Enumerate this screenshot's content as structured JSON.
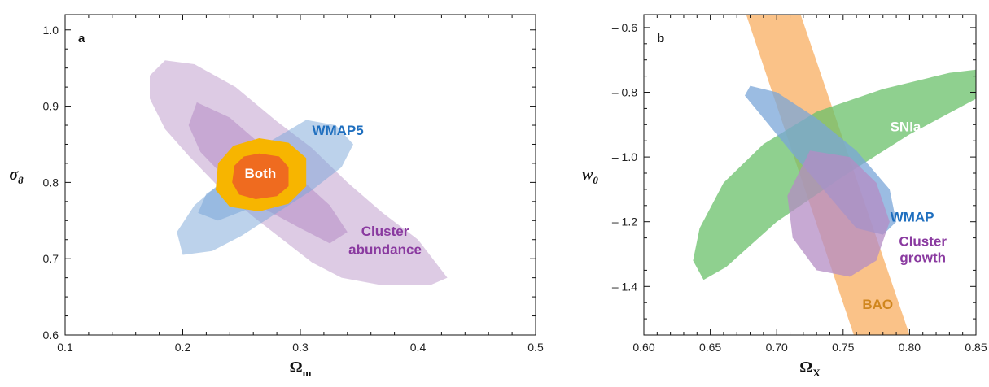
{
  "colors": {
    "wmap": "#7aa6d8",
    "cluster": "#b48cc4",
    "both_outer": "#f7b500",
    "both_inner": "#ef6b1f",
    "sn": "#69c06a",
    "bao": "#f9b36a",
    "text_blue": "#1f6fbf",
    "text_purple": "#8a3aa0",
    "text_orange": "#d0861e",
    "text_white": "#ffffff"
  },
  "chart_data": [
    {
      "type": "area",
      "panel_label": "a",
      "title": "",
      "xlabel": "Ω",
      "xlabel_sub": "m",
      "ylabel": "σ",
      "ylabel_sub": "8",
      "xlim": [
        0.1,
        0.5
      ],
      "ylim": [
        0.6,
        1.02
      ],
      "xticks": [
        "0.1",
        "0.2",
        "0.3",
        "0.4",
        "0.5"
      ],
      "xtick_values": [
        0.1,
        0.2,
        0.3,
        0.4,
        0.5
      ],
      "yticks": [
        "0.6",
        "0.7",
        "0.8",
        "0.9",
        "1.0"
      ],
      "ytick_values": [
        0.6,
        0.7,
        0.8,
        0.9,
        1.0
      ],
      "regions": [
        {
          "key": "cluster_outer",
          "color": "cluster",
          "opacity": 0.45,
          "points": [
            [
              0.185,
              0.96
            ],
            [
              0.21,
              0.955
            ],
            [
              0.245,
              0.925
            ],
            [
              0.28,
              0.88
            ],
            [
              0.31,
              0.845
            ],
            [
              0.34,
              0.8
            ],
            [
              0.37,
              0.76
            ],
            [
              0.4,
              0.725
            ],
            [
              0.425,
              0.675
            ],
            [
              0.41,
              0.665
            ],
            [
              0.37,
              0.665
            ],
            [
              0.335,
              0.675
            ],
            [
              0.31,
              0.695
            ],
            [
              0.285,
              0.725
            ],
            [
              0.26,
              0.755
            ],
            [
              0.23,
              0.795
            ],
            [
              0.205,
              0.835
            ],
            [
              0.185,
              0.87
            ],
            [
              0.172,
              0.91
            ],
            [
              0.172,
              0.94
            ]
          ]
        },
        {
          "key": "cluster_inner",
          "color": "cluster",
          "opacity": 0.55,
          "points": [
            [
              0.212,
              0.905
            ],
            [
              0.24,
              0.885
            ],
            [
              0.27,
              0.845
            ],
            [
              0.3,
              0.805
            ],
            [
              0.325,
              0.77
            ],
            [
              0.34,
              0.735
            ],
            [
              0.325,
              0.72
            ],
            [
              0.3,
              0.74
            ],
            [
              0.27,
              0.765
            ],
            [
              0.24,
              0.8
            ],
            [
              0.215,
              0.84
            ],
            [
              0.205,
              0.875
            ]
          ]
        },
        {
          "key": "wmap_outer",
          "color": "wmap",
          "opacity": 0.5,
          "points": [
            [
              0.305,
              0.882
            ],
            [
              0.33,
              0.875
            ],
            [
              0.345,
              0.85
            ],
            [
              0.335,
              0.82
            ],
            [
              0.31,
              0.79
            ],
            [
              0.28,
              0.76
            ],
            [
              0.25,
              0.73
            ],
            [
              0.225,
              0.71
            ],
            [
              0.2,
              0.705
            ],
            [
              0.195,
              0.735
            ],
            [
              0.21,
              0.77
            ],
            [
              0.24,
              0.81
            ],
            [
              0.27,
              0.85
            ]
          ]
        },
        {
          "key": "wmap_inner",
          "color": "wmap",
          "opacity": 0.55,
          "points": [
            [
              0.29,
              0.84
            ],
            [
              0.305,
              0.83
            ],
            [
              0.3,
              0.805
            ],
            [
              0.28,
              0.785
            ],
            [
              0.255,
              0.765
            ],
            [
              0.23,
              0.75
            ],
            [
              0.213,
              0.76
            ],
            [
              0.22,
              0.785
            ],
            [
              0.245,
              0.81
            ],
            [
              0.27,
              0.83
            ]
          ]
        },
        {
          "key": "both_outer",
          "color": "both_outer",
          "opacity": 1.0,
          "points": [
            [
              0.265,
              0.858
            ],
            [
              0.29,
              0.852
            ],
            [
              0.305,
              0.832
            ],
            [
              0.305,
              0.795
            ],
            [
              0.29,
              0.772
            ],
            [
              0.265,
              0.762
            ],
            [
              0.24,
              0.768
            ],
            [
              0.228,
              0.79
            ],
            [
              0.23,
              0.825
            ],
            [
              0.243,
              0.848
            ]
          ]
        },
        {
          "key": "both_inner",
          "color": "both_inner",
          "opacity": 1.0,
          "points": [
            [
              0.265,
              0.838
            ],
            [
              0.282,
              0.834
            ],
            [
              0.29,
              0.82
            ],
            [
              0.29,
              0.795
            ],
            [
              0.28,
              0.782
            ],
            [
              0.262,
              0.778
            ],
            [
              0.248,
              0.784
            ],
            [
              0.242,
              0.8
            ],
            [
              0.244,
              0.822
            ],
            [
              0.252,
              0.834
            ]
          ]
        }
      ],
      "labels": [
        {
          "key": "wmap5",
          "text": "WMAP5",
          "x": 0.31,
          "y": 0.862,
          "color": "text_blue",
          "anchor": "start"
        },
        {
          "key": "both",
          "text": "Both",
          "x": 0.266,
          "y": 0.806,
          "color": "text_white",
          "anchor": "middle"
        },
        {
          "key": "cluster1",
          "text": "Cluster",
          "x": 0.372,
          "y": 0.73,
          "color": "text_purple",
          "anchor": "middle"
        },
        {
          "key": "cluster2",
          "text": "abundance",
          "x": 0.372,
          "y": 0.706,
          "color": "text_purple",
          "anchor": "middle"
        }
      ]
    },
    {
      "type": "area",
      "panel_label": "b",
      "title": "",
      "xlabel": "Ω",
      "xlabel_sub": "X",
      "ylabel": "w",
      "ylabel_sub": "0",
      "xlim": [
        0.6,
        0.85
      ],
      "ylim": [
        -1.55,
        -0.56
      ],
      "xticks": [
        "0.60",
        "0.65",
        "0.70",
        "0.75",
        "0.80",
        "0.85"
      ],
      "xtick_values": [
        0.6,
        0.65,
        0.7,
        0.75,
        0.8,
        0.85
      ],
      "yticks": [
        "– 1.4",
        "– 1.2",
        "– 1.0",
        "– 0.8",
        "– 0.6"
      ],
      "ytick_values": [
        -1.4,
        -1.2,
        -1.0,
        -0.8,
        -0.6
      ],
      "regions": [
        {
          "key": "bao",
          "color": "bao",
          "opacity": 0.8,
          "points": [
            [
              0.677,
              -0.56
            ],
            [
              0.718,
              -0.56
            ],
            [
              0.8,
              -1.55
            ],
            [
              0.758,
              -1.55
            ]
          ]
        },
        {
          "key": "sn",
          "color": "sn",
          "opacity": 0.75,
          "points": [
            [
              0.645,
              -1.38
            ],
            [
              0.662,
              -1.34
            ],
            [
              0.7,
              -1.2
            ],
            [
              0.75,
              -1.06
            ],
            [
              0.8,
              -0.93
            ],
            [
              0.85,
              -0.82
            ],
            [
              0.85,
              -0.73
            ],
            [
              0.83,
              -0.74
            ],
            [
              0.78,
              -0.79
            ],
            [
              0.73,
              -0.86
            ],
            [
              0.69,
              -0.96
            ],
            [
              0.66,
              -1.08
            ],
            [
              0.642,
              -1.22
            ],
            [
              0.637,
              -1.32
            ]
          ]
        },
        {
          "key": "wmap",
          "color": "wmap",
          "opacity": 0.75,
          "points": [
            [
              0.68,
              -0.78
            ],
            [
              0.7,
              -0.8
            ],
            [
              0.73,
              -0.88
            ],
            [
              0.76,
              -0.98
            ],
            [
              0.785,
              -1.1
            ],
            [
              0.79,
              -1.2
            ],
            [
              0.78,
              -1.24
            ],
            [
              0.76,
              -1.22
            ],
            [
              0.735,
              -1.1
            ],
            [
              0.71,
              -0.98
            ],
            [
              0.69,
              -0.88
            ],
            [
              0.676,
              -0.81
            ]
          ]
        },
        {
          "key": "cluster",
          "color": "cluster",
          "opacity": 0.75,
          "points": [
            [
              0.725,
              -0.98
            ],
            [
              0.755,
              -1.0
            ],
            [
              0.775,
              -1.08
            ],
            [
              0.785,
              -1.2
            ],
            [
              0.775,
              -1.32
            ],
            [
              0.755,
              -1.37
            ],
            [
              0.73,
              -1.35
            ],
            [
              0.712,
              -1.25
            ],
            [
              0.708,
              -1.12
            ]
          ]
        }
      ],
      "labels": [
        {
          "key": "sn",
          "text": "SNIa",
          "x": 0.797,
          "y": -0.92,
          "color": "text_white",
          "anchor": "middle"
        },
        {
          "key": "wmap",
          "text": "WMAP",
          "x": 0.802,
          "y": -1.2,
          "color": "text_blue",
          "anchor": "middle"
        },
        {
          "key": "cluster1",
          "text": "Cluster",
          "x": 0.81,
          "y": -1.275,
          "color": "text_purple",
          "anchor": "middle"
        },
        {
          "key": "cluster2",
          "text": "growth",
          "x": 0.81,
          "y": -1.325,
          "color": "text_purple",
          "anchor": "middle"
        },
        {
          "key": "bao",
          "text": "BAO",
          "x": 0.776,
          "y": -1.47,
          "color": "text_orange",
          "anchor": "middle"
        }
      ]
    }
  ]
}
